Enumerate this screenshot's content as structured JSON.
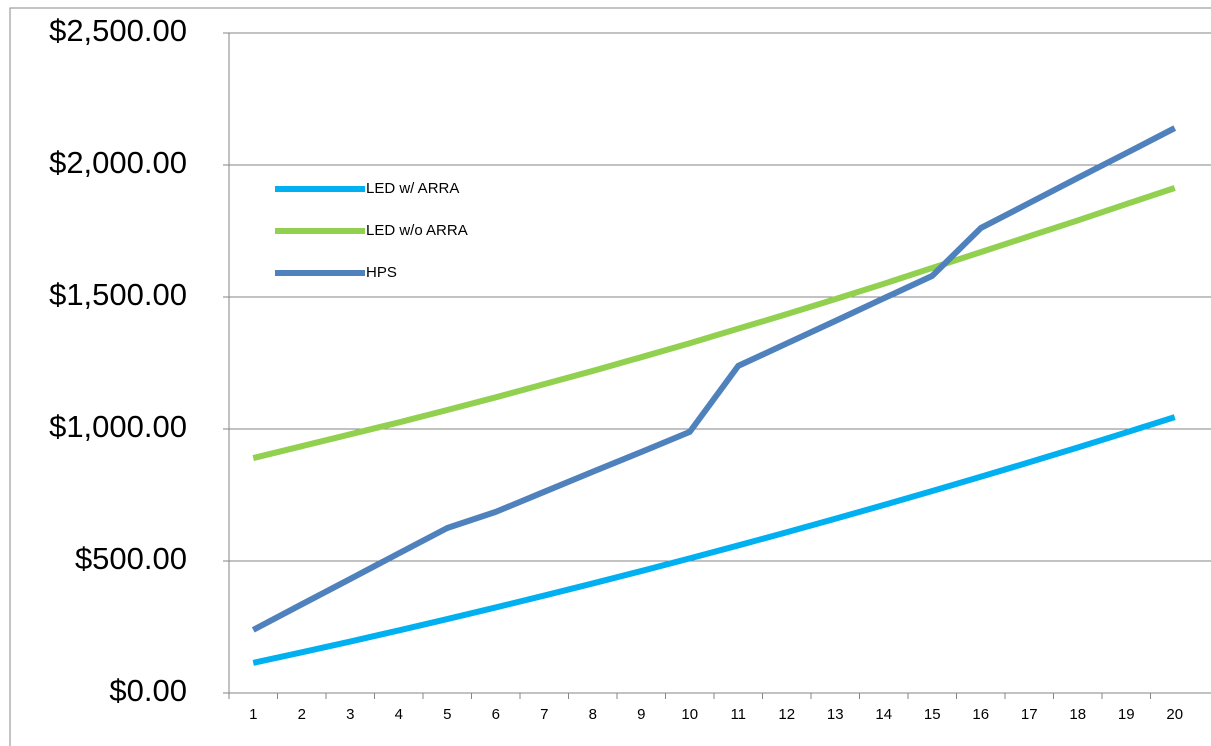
{
  "chart_data": {
    "type": "line",
    "categories": [
      "1",
      "2",
      "3",
      "4",
      "5",
      "6",
      "7",
      "8",
      "9",
      "10",
      "11",
      "12",
      "13",
      "14",
      "15",
      "16",
      "17",
      "18",
      "19",
      "20"
    ],
    "series": [
      {
        "name": "LED w/ ARRA",
        "color": "#00b0f0",
        "values": [
          114,
          154,
          195,
          237,
          280,
          324,
          369,
          415,
          462,
          510,
          559,
          609,
          660,
          712,
          765,
          819,
          874,
          930,
          987,
          1045
        ]
      },
      {
        "name": "LED w/o ARRA",
        "color": "#92d050",
        "values": [
          890,
          935,
          980,
          1025,
          1072,
          1120,
          1170,
          1220,
          1272,
          1325,
          1380,
          1435,
          1492,
          1550,
          1610,
          1670,
          1730,
          1790,
          1852,
          1913
        ]
      },
      {
        "name": "HPS",
        "color": "#4f81bd",
        "values": [
          239,
          336,
          432,
          529,
          625,
          686,
          762,
          838,
          913,
          989,
          1239,
          1324,
          1409,
          1495,
          1580,
          1761,
          1856,
          1951,
          2045,
          2140
        ]
      }
    ],
    "ylim": [
      0,
      2500
    ],
    "yticks": [
      {
        "value": 0,
        "label": "$0.00"
      },
      {
        "value": 500,
        "label": "$500.00"
      },
      {
        "value": 1000,
        "label": "$1,000.00"
      },
      {
        "value": 1500,
        "label": "$1,500.00"
      },
      {
        "value": 2000,
        "label": "$2,000.00"
      },
      {
        "value": 2500,
        "label": "$2,500.00"
      }
    ],
    "grid": true,
    "legend": "upper left"
  }
}
